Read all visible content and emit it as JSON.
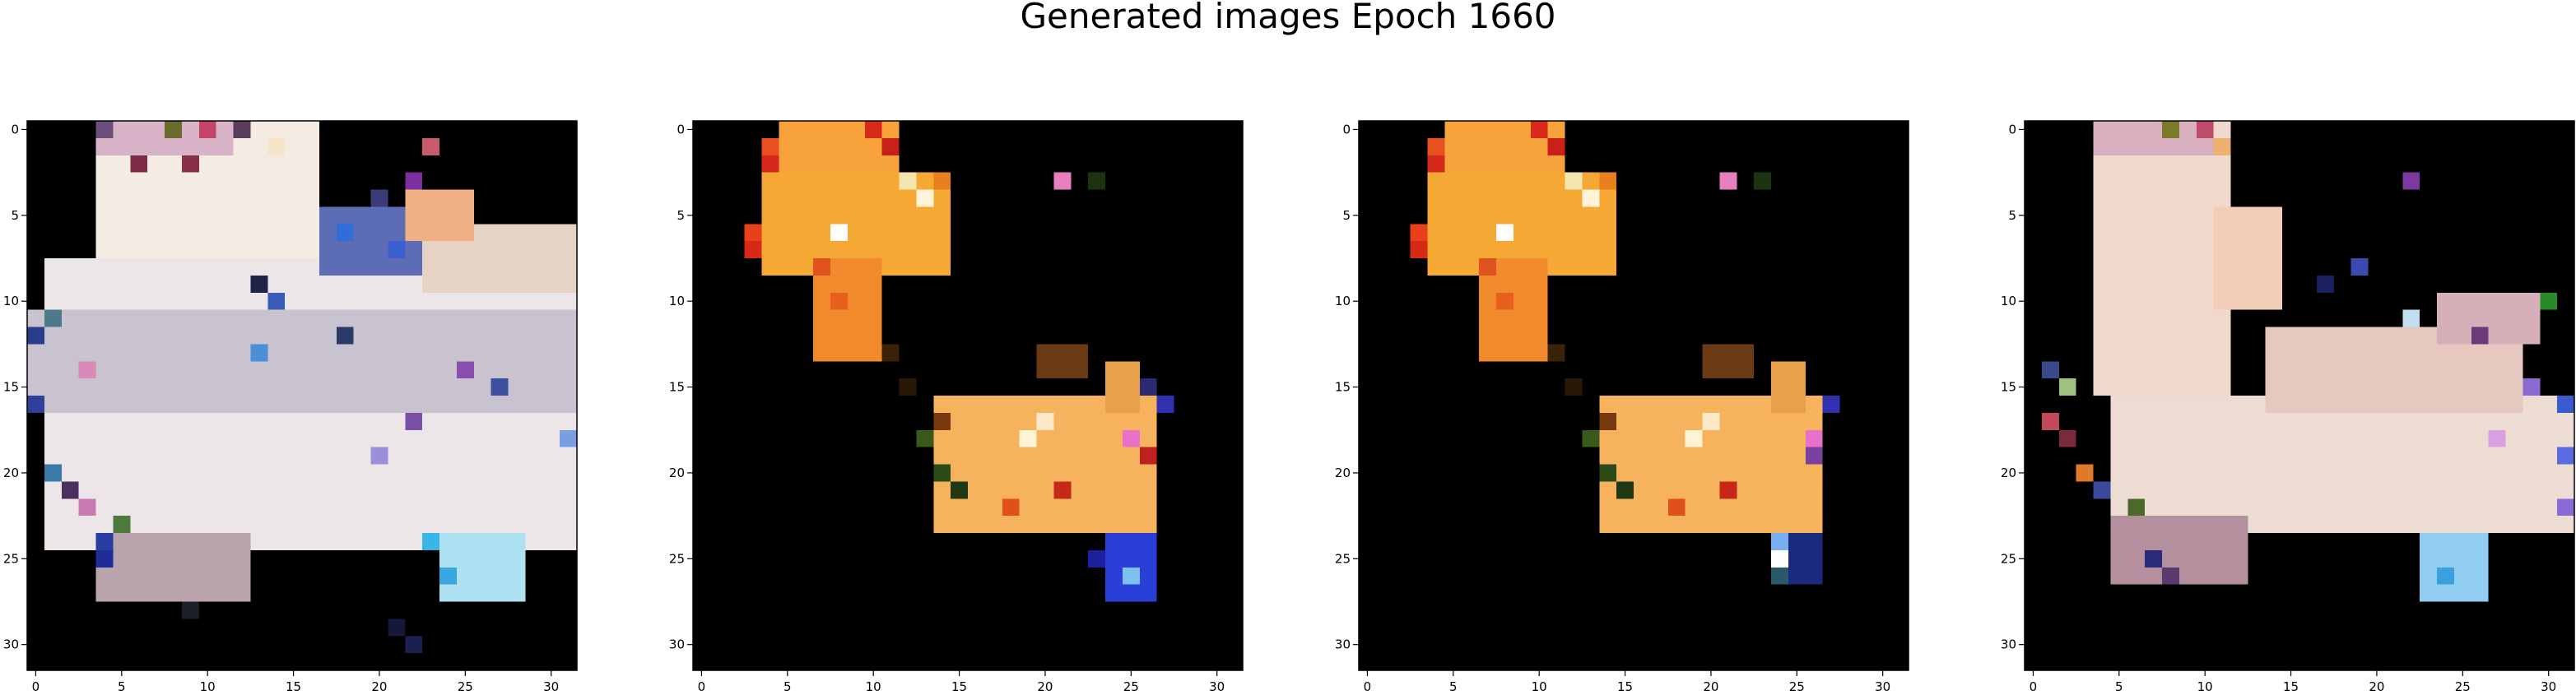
{
  "title": "Generated images Epoch 1660",
  "chart_data": [
    {
      "type": "heatmap",
      "title": "",
      "xlabel": "",
      "ylabel": "",
      "xlim": [
        -0.5,
        31.5
      ],
      "ylim": [
        31.5,
        -0.5
      ],
      "xticks": [
        "0",
        "5",
        "10",
        "15",
        "20",
        "25",
        "30"
      ],
      "yticks": [
        "0",
        "5",
        "10",
        "15",
        "20",
        "25",
        "30"
      ],
      "grid": false,
      "size": [
        32,
        32
      ],
      "background": "#000000",
      "rects": [
        {
          "rows": [
            0,
            22
          ],
          "cols": [
            4,
            16
          ],
          "color": "#f4ebe2"
        },
        {
          "rows": [
            0,
            1
          ],
          "cols": [
            4,
            11
          ],
          "color": "#d9b3c8"
        },
        {
          "rows": [
            8,
            24
          ],
          "cols": [
            1,
            31
          ],
          "color": "#ece6e8"
        },
        {
          "rows": [
            11,
            16
          ],
          "cols": [
            0,
            31
          ],
          "color": "#c9c3cf"
        },
        {
          "rows": [
            24,
            27
          ],
          "cols": [
            4,
            12
          ],
          "color": "#b9a3ad"
        },
        {
          "rows": [
            24,
            27
          ],
          "cols": [
            24,
            28
          ],
          "color": "#aee1f1"
        },
        {
          "rows": [
            5,
            8
          ],
          "cols": [
            17,
            23
          ],
          "color": "#5c6db5"
        },
        {
          "rows": [
            6,
            9
          ],
          "cols": [
            23,
            31
          ],
          "color": "#e6d3c4"
        },
        {
          "rows": [
            4,
            6
          ],
          "cols": [
            22,
            25
          ],
          "color": "#f0b083"
        }
      ],
      "cells": [
        {
          "r": 0,
          "c": 4,
          "color": "#6b4f7a"
        },
        {
          "r": 0,
          "c": 8,
          "color": "#6b6b2e"
        },
        {
          "r": 0,
          "c": 10,
          "color": "#c4446a"
        },
        {
          "r": 0,
          "c": 12,
          "color": "#5a3d5c"
        },
        {
          "r": 1,
          "c": 23,
          "color": "#c85a6c"
        },
        {
          "r": 1,
          "c": 14,
          "color": "#f7e4c9"
        },
        {
          "r": 2,
          "c": 6,
          "color": "#7d2a48"
        },
        {
          "r": 2,
          "c": 9,
          "color": "#8a2f4a"
        },
        {
          "r": 3,
          "c": 22,
          "color": "#7b2fa0"
        },
        {
          "r": 4,
          "c": 20,
          "color": "#3b3b7a"
        },
        {
          "r": 6,
          "c": 18,
          "color": "#2f6ed8"
        },
        {
          "r": 7,
          "c": 21,
          "color": "#3c5fd0"
        },
        {
          "r": 9,
          "c": 13,
          "color": "#1f2348"
        },
        {
          "r": 10,
          "c": 14,
          "color": "#3a5bb8"
        },
        {
          "r": 11,
          "c": 1,
          "color": "#4b7a8c"
        },
        {
          "r": 12,
          "c": 0,
          "color": "#2a3d8c"
        },
        {
          "r": 13,
          "c": 13,
          "color": "#4d8ed9"
        },
        {
          "r": 14,
          "c": 25,
          "color": "#8a4fae"
        },
        {
          "r": 14,
          "c": 3,
          "color": "#d98ab8"
        },
        {
          "r": 15,
          "c": 27,
          "color": "#3d4fa0"
        },
        {
          "r": 16,
          "c": 0,
          "color": "#2f3f9a"
        },
        {
          "r": 18,
          "c": 31,
          "color": "#7a9fe0"
        },
        {
          "r": 20,
          "c": 1,
          "color": "#3c7aa8"
        },
        {
          "r": 21,
          "c": 2,
          "color": "#4b2f5e"
        },
        {
          "r": 22,
          "c": 3,
          "color": "#c87ab0"
        },
        {
          "r": 23,
          "c": 5,
          "color": "#4b7a3c"
        },
        {
          "r": 24,
          "c": 4,
          "color": "#2a3da0"
        },
        {
          "r": 25,
          "c": 4,
          "color": "#1f2c9a"
        },
        {
          "r": 24,
          "c": 23,
          "color": "#39b6e8"
        },
        {
          "r": 26,
          "c": 24,
          "color": "#3aa6e0"
        },
        {
          "r": 28,
          "c": 9,
          "color": "#1a1f2a"
        },
        {
          "r": 29,
          "c": 21,
          "color": "#14183a"
        },
        {
          "r": 30,
          "c": 22,
          "color": "#1c2050"
        },
        {
          "r": 12,
          "c": 18,
          "color": "#2c3a6a"
        },
        {
          "r": 17,
          "c": 22,
          "color": "#7a4fa8"
        },
        {
          "r": 19,
          "c": 20,
          "color": "#9a8fd8"
        }
      ]
    },
    {
      "type": "heatmap",
      "title": "",
      "xlabel": "",
      "ylabel": "",
      "xlim": [
        -0.5,
        31.5
      ],
      "ylim": [
        31.5,
        -0.5
      ],
      "xticks": [
        "0",
        "5",
        "10",
        "15",
        "20",
        "25",
        "30"
      ],
      "yticks": [
        "0",
        "5",
        "10",
        "15",
        "20",
        "25",
        "30"
      ],
      "grid": false,
      "size": [
        32,
        32
      ],
      "background": "#000000",
      "rects": [
        {
          "rows": [
            0,
            3
          ],
          "cols": [
            5,
            11
          ],
          "color": "#f7a23a"
        },
        {
          "rows": [
            3,
            8
          ],
          "cols": [
            4,
            14
          ],
          "color": "#f5a833"
        },
        {
          "rows": [
            8,
            13
          ],
          "cols": [
            7,
            10
          ],
          "color": "#f08a2c"
        },
        {
          "rows": [
            16,
            23
          ],
          "cols": [
            14,
            26
          ],
          "color": "#f6b25c"
        },
        {
          "rows": [
            14,
            16
          ],
          "cols": [
            24,
            25
          ],
          "color": "#e8a04a"
        },
        {
          "rows": [
            24,
            27
          ],
          "cols": [
            24,
            26
          ],
          "color": "#2a3fd8"
        },
        {
          "rows": [
            13,
            14
          ],
          "cols": [
            20,
            22
          ],
          "color": "#6a3a12"
        }
      ],
      "cells": [
        {
          "r": 1,
          "c": 4,
          "color": "#e8501f"
        },
        {
          "r": 2,
          "c": 4,
          "color": "#d6281c"
        },
        {
          "r": 0,
          "c": 10,
          "color": "#d8291a"
        },
        {
          "r": 1,
          "c": 11,
          "color": "#c9201a"
        },
        {
          "r": 3,
          "c": 14,
          "color": "#e8801e"
        },
        {
          "r": 3,
          "c": 12,
          "color": "#f5e6b0"
        },
        {
          "r": 3,
          "c": 21,
          "color": "#e880c0"
        },
        {
          "r": 3,
          "c": 23,
          "color": "#1c3310"
        },
        {
          "r": 4,
          "c": 13,
          "color": "#fff4d8"
        },
        {
          "r": 6,
          "c": 8,
          "color": "#ffffff"
        },
        {
          "r": 6,
          "c": 3,
          "color": "#e8401a"
        },
        {
          "r": 7,
          "c": 3,
          "color": "#d82816"
        },
        {
          "r": 8,
          "c": 7,
          "color": "#e0521e"
        },
        {
          "r": 10,
          "c": 8,
          "color": "#e8601e"
        },
        {
          "r": 13,
          "c": 11,
          "color": "#3a2208"
        },
        {
          "r": 15,
          "c": 12,
          "color": "#2a1806"
        },
        {
          "r": 17,
          "c": 14,
          "color": "#7a3a10"
        },
        {
          "r": 18,
          "c": 13,
          "color": "#3a5a1a"
        },
        {
          "r": 20,
          "c": 14,
          "color": "#2c4a18"
        },
        {
          "r": 21,
          "c": 15,
          "color": "#203815"
        },
        {
          "r": 18,
          "c": 25,
          "color": "#e870c8"
        },
        {
          "r": 19,
          "c": 26,
          "color": "#c02020"
        },
        {
          "r": 15,
          "c": 26,
          "color": "#2a2a70"
        },
        {
          "r": 16,
          "c": 27,
          "color": "#3030b0"
        },
        {
          "r": 22,
          "c": 18,
          "color": "#e0501a"
        },
        {
          "r": 21,
          "c": 21,
          "color": "#c8281a"
        },
        {
          "r": 18,
          "c": 19,
          "color": "#fff3d6"
        },
        {
          "r": 17,
          "c": 20,
          "color": "#fde8c8"
        },
        {
          "r": 26,
          "c": 25,
          "color": "#7ac0f0"
        },
        {
          "r": 25,
          "c": 23,
          "color": "#1a20a0"
        }
      ]
    },
    {
      "type": "heatmap",
      "title": "",
      "xlabel": "",
      "ylabel": "",
      "xlim": [
        -0.5,
        31.5
      ],
      "ylim": [
        31.5,
        -0.5
      ],
      "xticks": [
        "0",
        "5",
        "10",
        "15",
        "20",
        "25",
        "30"
      ],
      "yticks": [
        "0",
        "5",
        "10",
        "15",
        "20",
        "25",
        "30"
      ],
      "grid": false,
      "size": [
        32,
        32
      ],
      "background": "#000000",
      "rects": [
        {
          "rows": [
            0,
            3
          ],
          "cols": [
            5,
            11
          ],
          "color": "#f7a23a"
        },
        {
          "rows": [
            3,
            8
          ],
          "cols": [
            4,
            14
          ],
          "color": "#f5a833"
        },
        {
          "rows": [
            8,
            13
          ],
          "cols": [
            7,
            10
          ],
          "color": "#f08a2c"
        },
        {
          "rows": [
            16,
            23
          ],
          "cols": [
            14,
            26
          ],
          "color": "#f6b25c"
        },
        {
          "rows": [
            14,
            16
          ],
          "cols": [
            24,
            25
          ],
          "color": "#e8a04a"
        },
        {
          "rows": [
            24,
            26
          ],
          "cols": [
            25,
            26
          ],
          "color": "#1a2a80"
        },
        {
          "rows": [
            13,
            14
          ],
          "cols": [
            20,
            22
          ],
          "color": "#6a3a12"
        }
      ],
      "cells": [
        {
          "r": 1,
          "c": 4,
          "color": "#e8501f"
        },
        {
          "r": 2,
          "c": 4,
          "color": "#d6281c"
        },
        {
          "r": 0,
          "c": 10,
          "color": "#d8291a"
        },
        {
          "r": 1,
          "c": 11,
          "color": "#c9201a"
        },
        {
          "r": 3,
          "c": 14,
          "color": "#e8801e"
        },
        {
          "r": 3,
          "c": 12,
          "color": "#f5e6b0"
        },
        {
          "r": 3,
          "c": 21,
          "color": "#e880c0"
        },
        {
          "r": 3,
          "c": 23,
          "color": "#1c3310"
        },
        {
          "r": 4,
          "c": 13,
          "color": "#fff4d8"
        },
        {
          "r": 6,
          "c": 8,
          "color": "#ffffff"
        },
        {
          "r": 6,
          "c": 3,
          "color": "#e8401a"
        },
        {
          "r": 7,
          "c": 3,
          "color": "#d82816"
        },
        {
          "r": 8,
          "c": 7,
          "color": "#e0521e"
        },
        {
          "r": 10,
          "c": 8,
          "color": "#e8601e"
        },
        {
          "r": 13,
          "c": 11,
          "color": "#3a2208"
        },
        {
          "r": 15,
          "c": 12,
          "color": "#2a1806"
        },
        {
          "r": 17,
          "c": 14,
          "color": "#7a3a10"
        },
        {
          "r": 18,
          "c": 13,
          "color": "#3a5a1a"
        },
        {
          "r": 20,
          "c": 14,
          "color": "#2c4a18"
        },
        {
          "r": 21,
          "c": 15,
          "color": "#203815"
        },
        {
          "r": 18,
          "c": 26,
          "color": "#e870c8"
        },
        {
          "r": 19,
          "c": 26,
          "color": "#7a40a0"
        },
        {
          "r": 16,
          "c": 27,
          "color": "#3030b0"
        },
        {
          "r": 22,
          "c": 18,
          "color": "#e0501a"
        },
        {
          "r": 21,
          "c": 21,
          "color": "#c8281a"
        },
        {
          "r": 18,
          "c": 19,
          "color": "#fff3d6"
        },
        {
          "r": 17,
          "c": 20,
          "color": "#fde8c8"
        },
        {
          "r": 26,
          "c": 24,
          "color": "#2a5a6a"
        },
        {
          "r": 25,
          "c": 24,
          "color": "#ffffff"
        },
        {
          "r": 24,
          "c": 24,
          "color": "#7ab0f0"
        }
      ]
    },
    {
      "type": "heatmap",
      "title": "",
      "xlabel": "",
      "ylabel": "",
      "xlim": [
        -0.5,
        31.5
      ],
      "ylim": [
        31.5,
        -0.5
      ],
      "xticks": [
        "0",
        "5",
        "10",
        "15",
        "20",
        "25",
        "30"
      ],
      "yticks": [
        "0",
        "5",
        "10",
        "15",
        "20",
        "25",
        "30"
      ],
      "grid": false,
      "size": [
        32,
        32
      ],
      "background": "#000000",
      "rects": [
        {
          "rows": [
            0,
            15
          ],
          "cols": [
            4,
            11
          ],
          "color": "#f0d8cc"
        },
        {
          "rows": [
            0,
            1
          ],
          "cols": [
            4,
            10
          ],
          "color": "#d8b0c0"
        },
        {
          "rows": [
            5,
            10
          ],
          "cols": [
            11,
            14
          ],
          "color": "#f1cdb8"
        },
        {
          "rows": [
            16,
            23
          ],
          "cols": [
            5,
            31
          ],
          "color": "#eddcd2"
        },
        {
          "rows": [
            12,
            16
          ],
          "cols": [
            14,
            28
          ],
          "color": "#e6c8c0"
        },
        {
          "rows": [
            10,
            12
          ],
          "cols": [
            24,
            29
          ],
          "color": "#d6b0b8"
        },
        {
          "rows": [
            23,
            26
          ],
          "cols": [
            5,
            12
          ],
          "color": "#b4909e"
        },
        {
          "rows": [
            24,
            27
          ],
          "cols": [
            23,
            26
          ],
          "color": "#90cdf0"
        }
      ],
      "cells": [
        {
          "r": 0,
          "c": 8,
          "color": "#7a7a2a"
        },
        {
          "r": 0,
          "c": 10,
          "color": "#c04a6a"
        },
        {
          "r": 1,
          "c": 11,
          "color": "#f0b070"
        },
        {
          "r": 3,
          "c": 22,
          "color": "#7a3aa0"
        },
        {
          "r": 8,
          "c": 19,
          "color": "#3a4ab0"
        },
        {
          "r": 9,
          "c": 17,
          "color": "#1a1f60"
        },
        {
          "r": 10,
          "c": 30,
          "color": "#2a8a2a"
        },
        {
          "r": 11,
          "c": 22,
          "color": "#c0e0f0"
        },
        {
          "r": 12,
          "c": 26,
          "color": "#6a3a7a"
        },
        {
          "r": 14,
          "c": 1,
          "color": "#3a4a8a"
        },
        {
          "r": 15,
          "c": 2,
          "color": "#a0c080"
        },
        {
          "r": 16,
          "c": 31,
          "color": "#3a5ad0"
        },
        {
          "r": 17,
          "c": 1,
          "color": "#c04a5a"
        },
        {
          "r": 18,
          "c": 2,
          "color": "#7a2a3a"
        },
        {
          "r": 19,
          "c": 31,
          "color": "#5a6ae0"
        },
        {
          "r": 20,
          "c": 3,
          "color": "#e07a2a"
        },
        {
          "r": 21,
          "c": 4,
          "color": "#3a4a9a"
        },
        {
          "r": 22,
          "c": 31,
          "color": "#8a6ad8"
        },
        {
          "r": 22,
          "c": 6,
          "color": "#4a6a2a"
        },
        {
          "r": 25,
          "c": 7,
          "color": "#2a2a7a"
        },
        {
          "r": 26,
          "c": 8,
          "color": "#5a3a6a"
        },
        {
          "r": 26,
          "c": 24,
          "color": "#3aa0e0"
        },
        {
          "r": 15,
          "c": 29,
          "color": "#8a6ad0"
        },
        {
          "r": 18,
          "c": 27,
          "color": "#d8a0e0"
        }
      ]
    }
  ]
}
